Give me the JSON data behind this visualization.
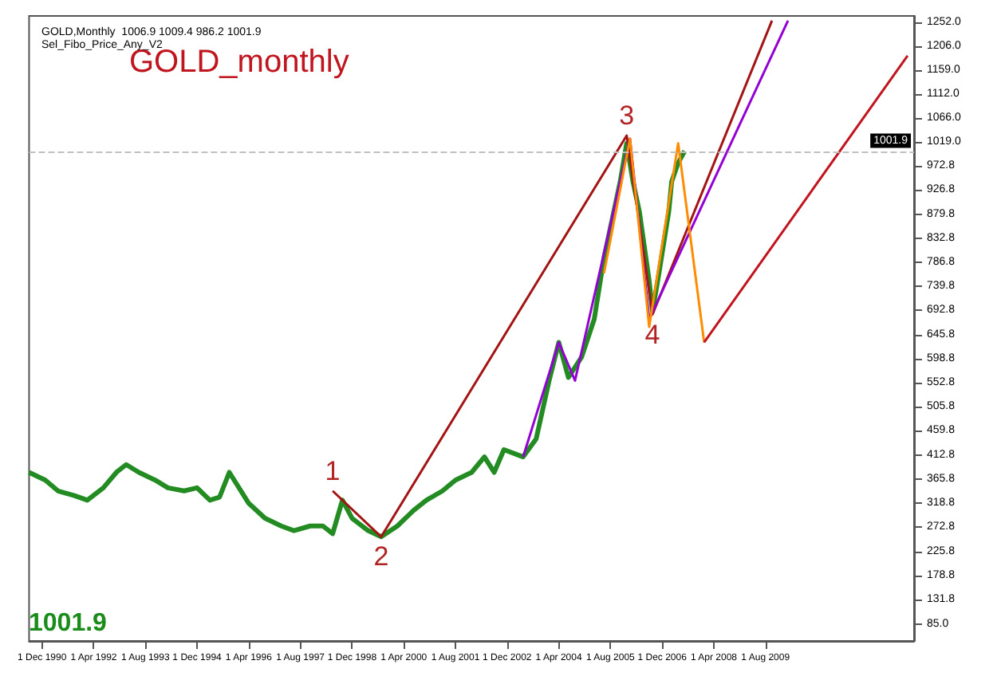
{
  "chart_data": {
    "type": "line",
    "title": "GOLD_monthly",
    "subtitle": "GOLD,Monthly  1006.9 1009.4 986.2 1001.9",
    "annotations": [
      "Sel_Fibo_Price_Any_V2",
      "1001.9",
      {
        "text": "1",
        "x": "1998-06",
        "y": 343
      },
      {
        "text": "2",
        "x": "1999-09",
        "y": 254
      },
      {
        "text": "3",
        "x": "2006-01",
        "y": 1032
      },
      {
        "text": "4",
        "x": "2006-09",
        "y": 685
      }
    ],
    "series": [
      {
        "color": "#228b22",
        "x": [
          "1990-08",
          "1991-01",
          "1991-05",
          "1991-10",
          "1992-02",
          "1992-07",
          "1992-11",
          "1993-02",
          "1993-06",
          "1993-11",
          "1994-03",
          "1994-08",
          "1994-12",
          "1995-04",
          "1995-07",
          "1995-10",
          "1996-04",
          "1996-09",
          "1997-02",
          "1997-06",
          "1997-11",
          "1998-03",
          "1998-06",
          "1998-09",
          "1998-12",
          "1999-05",
          "1999-09",
          "2000-02",
          "2000-07",
          "2000-11",
          "2001-04",
          "2001-08",
          "2002-01",
          "2002-05",
          "2002-08",
          "2002-11",
          "2003-05",
          "2003-09",
          "2004-01",
          "2004-04",
          "2004-07",
          "2004-11",
          "2005-03",
          "2005-06",
          "2005-11",
          "2006-01",
          "2006-03",
          "2006-05",
          "2006-08",
          "2006-09",
          "2006-11",
          "2007-02",
          "2007-03",
          "2007-05",
          "2007-07"
        ],
        "values": [
          379,
          364,
          343,
          334,
          325,
          349,
          379,
          394,
          379,
          364,
          349,
          343,
          349,
          325,
          331,
          379,
          319,
          290,
          275,
          266,
          275,
          275,
          260,
          325,
          290,
          266,
          254,
          275,
          305,
          325,
          343,
          364,
          379,
          409,
          379,
          423,
          409,
          444,
          557,
          631,
          563,
          602,
          676,
          795,
          943,
          1017,
          943,
          884,
          750,
          691,
          765,
          884,
          943,
          979,
          1002
        ]
      },
      {
        "color": "#a31515",
        "x": [
          "1998-06",
          "1999-09",
          "2006-01",
          "2006-09",
          "2009-10"
        ],
        "values": [
          343,
          254,
          1032,
          685,
          1255
        ]
      },
      {
        "color": "#9400d3",
        "x": [
          "2003-05",
          "2004-04",
          "2004-09",
          "2006-02",
          "2006-08",
          "2010-03"
        ],
        "values": [
          409,
          631,
          557,
          1026,
          676,
          1255
        ]
      },
      {
        "color": "#ff8c00",
        "x": [
          "2005-06",
          "2006-02",
          "2006-08",
          "2007-05",
          "2008-01"
        ],
        "values": [
          765,
          1026,
          661,
          1017,
          631
        ]
      },
      {
        "color": "#c0141e",
        "x": [
          "2008-01",
          "2013-04"
        ],
        "values": [
          631,
          1187
        ]
      }
    ],
    "xlim": [
      "1990-08",
      "2013-06"
    ],
    "xticks": [
      {
        "value": "1990-12",
        "label": "1 Dec 1990"
      },
      {
        "value": "1992-04",
        "label": "1 Apr 1992"
      },
      {
        "value": "1993-08",
        "label": "1 Aug 1993"
      },
      {
        "value": "1994-12",
        "label": "1 Dec 1994"
      },
      {
        "value": "1996-04",
        "label": "1 Apr 1996"
      },
      {
        "value": "1997-08",
        "label": "1 Aug 1997"
      },
      {
        "value": "1998-12",
        "label": "1 Dec 1998"
      },
      {
        "value": "2000-04",
        "label": "1 Apr 2000"
      },
      {
        "value": "2001-08",
        "label": "1 Aug 2001"
      },
      {
        "value": "2002-12",
        "label": "1 Dec 2002"
      },
      {
        "value": "2004-04",
        "label": "1 Apr 2004"
      },
      {
        "value": "2005-08",
        "label": "1 Aug 2005"
      },
      {
        "value": "2006-12",
        "label": "1 Dec 2006"
      },
      {
        "value": "2008-04",
        "label": "1 Apr 2008"
      },
      {
        "value": "2009-08",
        "label": "1 Aug 2009"
      }
    ],
    "ylim": [
      52,
      1264
    ],
    "yticks": [
      {
        "value": 1252,
        "label": "1252.0"
      },
      {
        "value": 1206,
        "label": "1206.0"
      },
      {
        "value": 1159,
        "label": "1159.0"
      },
      {
        "value": 1112,
        "label": "1112.0"
      },
      {
        "value": 1066,
        "label": "1066.0"
      },
      {
        "value": 1019,
        "label": "1019.0"
      },
      {
        "value": 972.8,
        "label": "972.8"
      },
      {
        "value": 926.8,
        "label": "926.8"
      },
      {
        "value": 879.8,
        "label": "879.8"
      },
      {
        "value": 832.8,
        "label": "832.8"
      },
      {
        "value": 786.8,
        "label": "786.8"
      },
      {
        "value": 739.8,
        "label": "739.8"
      },
      {
        "value": 692.8,
        "label": "692.8"
      },
      {
        "value": 645.8,
        "label": "645.8"
      },
      {
        "value": 598.8,
        "label": "598.8"
      },
      {
        "value": 552.8,
        "label": "552.8"
      },
      {
        "value": 505.8,
        "label": "505.8"
      },
      {
        "value": 459.8,
        "label": "459.8"
      },
      {
        "value": 412.8,
        "label": "412.8"
      },
      {
        "value": 365.8,
        "label": "365.8"
      },
      {
        "value": 318.8,
        "label": "318.8"
      },
      {
        "value": 272.8,
        "label": "272.8"
      },
      {
        "value": 225.8,
        "label": "225.8"
      },
      {
        "value": 178.8,
        "label": "178.8"
      },
      {
        "value": 131.8,
        "label": "131.8"
      },
      {
        "value": 85,
        "label": "85.0"
      }
    ],
    "ref_lines": [
      {
        "axis": "y",
        "value": 1001.9,
        "label": "1001.9",
        "color": "#c0c0c0",
        "line_style": "dashed"
      }
    ],
    "grid": false,
    "marker": "none",
    "line_style": "solid"
  }
}
